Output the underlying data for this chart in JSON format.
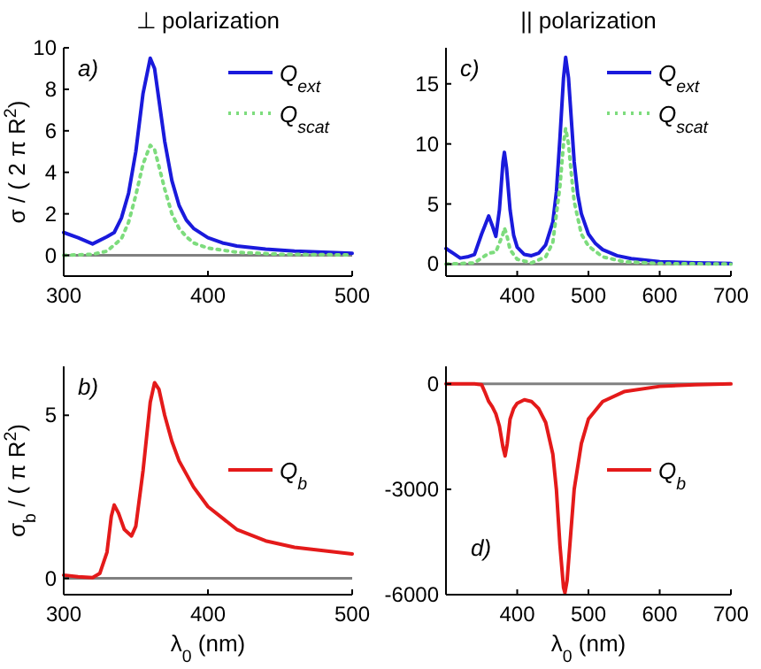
{
  "chart_data": [
    {
      "type": "line",
      "title": "⊥ polarization",
      "ylabel": "σ / ( 2 π R$^{2}$)",
      "annotations": [
        "a)"
      ],
      "xlim": [
        300,
        500
      ],
      "xticks": [
        300,
        400,
        500
      ],
      "ylim": [
        -1,
        10
      ],
      "yticks": [
        0,
        2,
        4,
        6,
        8,
        10
      ],
      "grid": false,
      "legend": "top right",
      "ref_lines": [
        {
          "axis": "y",
          "value": 0,
          "color": "#808080"
        }
      ],
      "series": [
        {
          "name": "Q$_{ext}$",
          "color": "#1a1adc",
          "line_style": "solid",
          "x": [
            300,
            310,
            320,
            330,
            335,
            340,
            345,
            350,
            355,
            360,
            363,
            366,
            370,
            375,
            380,
            385,
            390,
            400,
            410,
            420,
            440,
            460,
            480,
            500
          ],
          "values": [
            1.1,
            0.85,
            0.55,
            0.9,
            1.1,
            1.8,
            3.0,
            5.0,
            7.8,
            9.5,
            9.0,
            7.5,
            5.5,
            3.6,
            2.4,
            1.7,
            1.3,
            0.85,
            0.6,
            0.45,
            0.3,
            0.2,
            0.15,
            0.1
          ]
        },
        {
          "name": "Q$_{scat}$",
          "color": "#7ddc7d",
          "line_style": "dotted",
          "x": [
            300,
            320,
            330,
            340,
            345,
            350,
            355,
            360,
            363,
            366,
            370,
            375,
            380,
            385,
            390,
            400,
            420,
            450,
            500
          ],
          "values": [
            0,
            0.05,
            0.2,
            0.8,
            1.6,
            2.9,
            4.4,
            5.3,
            5.1,
            4.3,
            3.2,
            2.0,
            1.3,
            0.9,
            0.6,
            0.35,
            0.15,
            0.05,
            0.02
          ]
        }
      ]
    },
    {
      "type": "line",
      "title": "|| polarization",
      "annotations": [
        "c)"
      ],
      "xlim": [
        300,
        700
      ],
      "xticks": [
        400,
        500,
        600,
        700
      ],
      "ylim": [
        -1,
        18
      ],
      "yticks": [
        0,
        5,
        10,
        15
      ],
      "grid": false,
      "legend": "top right",
      "ref_lines": [
        {
          "axis": "y",
          "value": 0,
          "color": "#808080"
        }
      ],
      "series": [
        {
          "name": "Q$_{ext}$",
          "color": "#1a1adc",
          "line_style": "solid",
          "x": [
            300,
            310,
            320,
            330,
            340,
            350,
            360,
            365,
            370,
            375,
            380,
            382,
            385,
            390,
            395,
            400,
            410,
            420,
            430,
            440,
            450,
            455,
            460,
            465,
            468,
            472,
            476,
            480,
            485,
            490,
            500,
            510,
            520,
            540,
            560,
            600,
            650,
            700
          ],
          "values": [
            1.3,
            0.9,
            0.5,
            0.6,
            0.8,
            2.5,
            4.0,
            3.2,
            2.3,
            4.5,
            8.5,
            9.3,
            8.0,
            4.5,
            2.4,
            1.4,
            0.8,
            0.7,
            0.9,
            1.6,
            3.5,
            6.0,
            10.5,
            15.5,
            17.2,
            15.5,
            12,
            8.5,
            5.8,
            4.2,
            2.5,
            1.7,
            1.2,
            0.7,
            0.45,
            0.2,
            0.1,
            0.05
          ]
        },
        {
          "name": "Q$_{scat}$",
          "color": "#7ddc7d",
          "line_style": "dotted",
          "x": [
            300,
            340,
            360,
            370,
            380,
            382,
            385,
            390,
            400,
            420,
            440,
            450,
            460,
            465,
            468,
            472,
            476,
            480,
            490,
            500,
            520,
            550,
            600,
            700
          ],
          "values": [
            0,
            0.1,
            0.9,
            1.0,
            2.5,
            3.0,
            2.5,
            1.2,
            0.4,
            0.1,
            0.6,
            1.8,
            6.5,
            10.0,
            11.3,
            10.0,
            7.5,
            5.2,
            2.5,
            1.5,
            0.6,
            0.2,
            0.05,
            0
          ]
        }
      ]
    },
    {
      "type": "line",
      "ylabel": "σ$_{b}$ / ( π R$^{2}$)",
      "xlabel": "λ$_{0}$  (nm)",
      "annotations": [
        "b)"
      ],
      "xlim": [
        300,
        500
      ],
      "xticks": [
        300,
        400,
        500
      ],
      "ylim": [
        -0.5,
        6.5
      ],
      "yticks": [
        0,
        5
      ],
      "grid": false,
      "legend": "right",
      "ref_lines": [
        {
          "axis": "y",
          "value": 0,
          "color": "#808080"
        }
      ],
      "series": [
        {
          "name": "Q$_{b}$",
          "color": "#e41a1a",
          "line_style": "solid",
          "x": [
            300,
            310,
            320,
            325,
            330,
            333,
            335,
            338,
            342,
            347,
            350,
            355,
            360,
            363,
            366,
            370,
            375,
            380,
            390,
            400,
            420,
            440,
            460,
            480,
            500
          ],
          "values": [
            0.1,
            0.05,
            0.02,
            0.15,
            0.8,
            1.9,
            2.25,
            2.0,
            1.5,
            1.3,
            1.6,
            3.3,
            5.4,
            6.0,
            5.8,
            5.0,
            4.2,
            3.6,
            2.8,
            2.2,
            1.5,
            1.15,
            0.95,
            0.85,
            0.75
          ]
        }
      ]
    },
    {
      "type": "line",
      "xlabel": "λ$_{0}$  (nm)",
      "annotations": [
        "d)"
      ],
      "xlim": [
        300,
        700
      ],
      "xticks": [
        400,
        500,
        600,
        700
      ],
      "ylim": [
        -6000,
        500
      ],
      "yticks": [
        -6000,
        -3000,
        0
      ],
      "grid": false,
      "legend": "right",
      "ref_lines": [
        {
          "axis": "y",
          "value": 0,
          "color": "#808080"
        }
      ],
      "series": [
        {
          "name": "Q$_{b}$",
          "color": "#e41a1a",
          "line_style": "solid",
          "x": [
            300,
            340,
            350,
            355,
            360,
            365,
            370,
            375,
            380,
            383,
            386,
            390,
            395,
            400,
            410,
            420,
            430,
            440,
            450,
            455,
            460,
            465,
            467,
            470,
            475,
            480,
            490,
            500,
            520,
            550,
            600,
            650,
            700
          ],
          "values": [
            0,
            0,
            -20,
            -250,
            -500,
            -650,
            -850,
            -1200,
            -1800,
            -2050,
            -1700,
            -1000,
            -700,
            -550,
            -450,
            -500,
            -700,
            -1100,
            -2000,
            -3000,
            -4600,
            -5800,
            -5950,
            -5600,
            -4300,
            -3000,
            -1700,
            -1000,
            -500,
            -220,
            -70,
            -20,
            0
          ]
        }
      ]
    }
  ]
}
